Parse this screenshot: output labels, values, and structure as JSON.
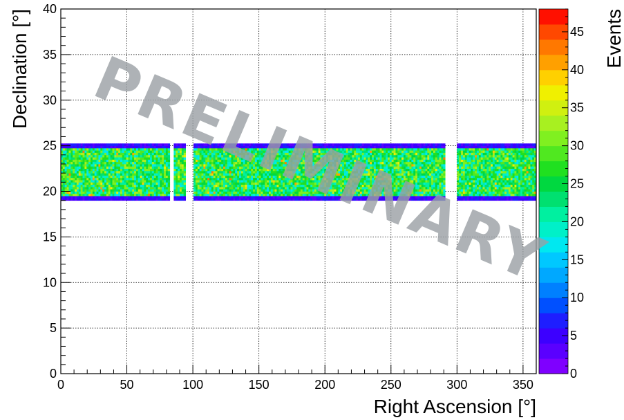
{
  "chart_data": {
    "type": "heatmap",
    "xlabel": "Right Ascension [°]",
    "ylabel": "Declination [°]",
    "zlabel": "Events",
    "xlim": [
      0,
      360
    ],
    "ylim": [
      0,
      40
    ],
    "zlim": [
      0,
      48
    ],
    "x_ticks": [
      "0",
      "50",
      "100",
      "150",
      "200",
      "250",
      "300",
      "350"
    ],
    "y_ticks": [
      "0",
      "5",
      "10",
      "15",
      "20",
      "25",
      "30",
      "35",
      "40"
    ],
    "z_ticks": [
      "0",
      "5",
      "10",
      "15",
      "20",
      "25",
      "30",
      "35",
      "40",
      "45"
    ],
    "grid": true,
    "band": {
      "dec_range": [
        19.0,
        25.2
      ],
      "typical_events": 25,
      "edge_events": 3,
      "ra_gaps": [
        [
          83,
          86
        ],
        [
          95,
          100
        ],
        [
          291,
          300
        ]
      ]
    },
    "watermark": "PRELIMINARY",
    "palette": [
      "#7f00ff",
      "#5a00ff",
      "#3c00ff",
      "#1e1eff",
      "#0050ff",
      "#0080ff",
      "#00a8ff",
      "#00c8ff",
      "#00e8f0",
      "#00f0c8",
      "#00f0a0",
      "#00e070",
      "#00d840",
      "#20e020",
      "#50e820",
      "#80f020",
      "#a8f020",
      "#d0f010",
      "#f0f000",
      "#ffd000",
      "#ffa000",
      "#ff7800",
      "#ff4800",
      "#ff1000"
    ]
  }
}
